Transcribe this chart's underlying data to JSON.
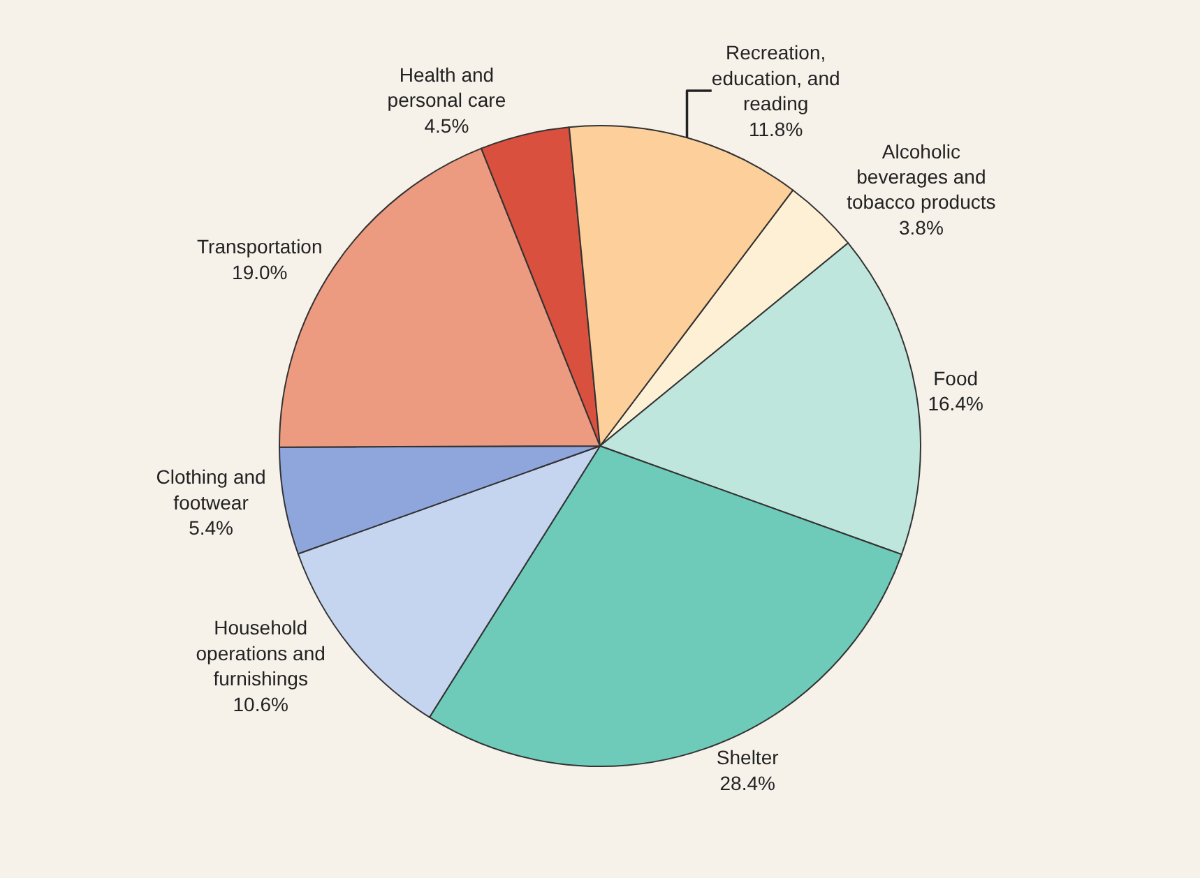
{
  "chart_data": {
    "type": "pie",
    "categories": [
      "Alcoholic beverages and tobacco products",
      "Food",
      "Shelter",
      "Household operations and furnishings",
      "Clothing and footwear",
      "Transportation",
      "Health and personal care",
      "Recreation, education, and reading"
    ],
    "values": [
      3.8,
      16.4,
      28.4,
      10.6,
      5.4,
      19.0,
      4.5,
      11.8
    ],
    "value_labels": [
      "3.8%",
      "16.4%",
      "28.4%",
      "10.6%",
      "5.4%",
      "19.0%",
      "4.5%",
      "11.8%"
    ],
    "colors": [
      "#fdf0d5",
      "#bfe6dc",
      "#6fcbb9",
      "#c5d5f0",
      "#8fa6dd",
      "#ec9a80",
      "#d9503e",
      "#fdd09b"
    ],
    "legend": false
  }
}
